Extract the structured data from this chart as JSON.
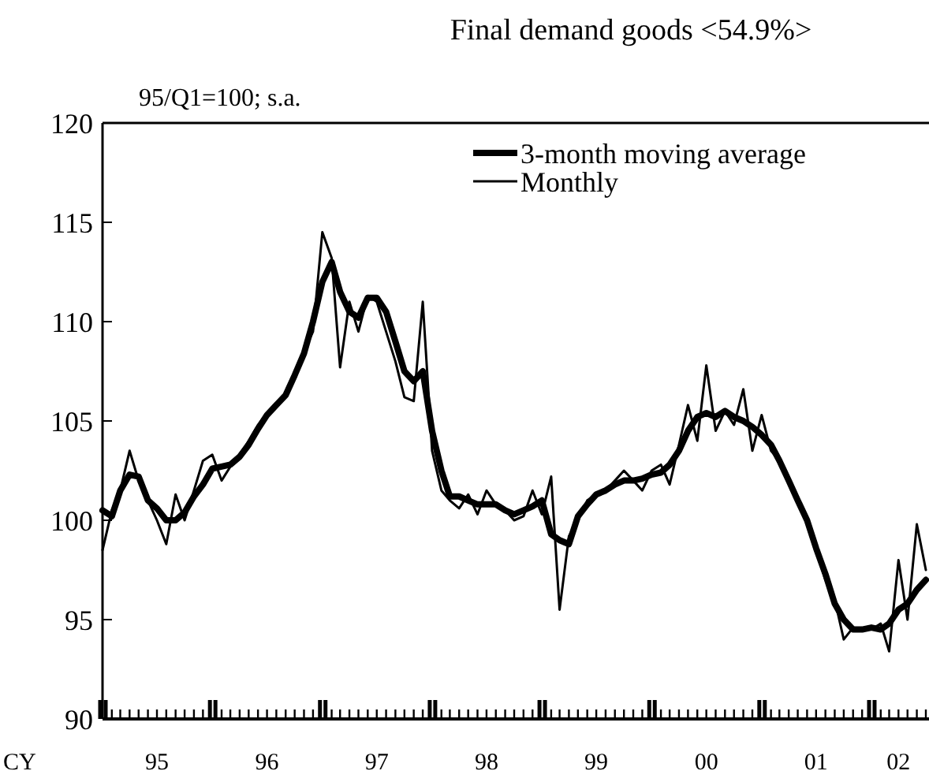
{
  "chart_data": {
    "type": "line",
    "title": "Final demand goods <54.9%>",
    "subtitle": "95/Q1=100; s.a.",
    "xlabel": "CY",
    "x": [
      "1995-01",
      "1995-02",
      "1995-03",
      "1995-04",
      "1995-05",
      "1995-06",
      "1995-07",
      "1995-08",
      "1995-09",
      "1995-10",
      "1995-11",
      "1995-12",
      "1996-01",
      "1996-02",
      "1996-03",
      "1996-04",
      "1996-05",
      "1996-06",
      "1996-07",
      "1996-08",
      "1996-09",
      "1996-10",
      "1996-11",
      "1996-12",
      "1997-01",
      "1997-02",
      "1997-03",
      "1997-04",
      "1997-05",
      "1997-06",
      "1997-07",
      "1997-08",
      "1997-09",
      "1997-10",
      "1997-11",
      "1997-12",
      "1998-01",
      "1998-02",
      "1998-03",
      "1998-04",
      "1998-05",
      "1998-06",
      "1998-07",
      "1998-08",
      "1998-09",
      "1998-10",
      "1998-11",
      "1998-12",
      "1999-01",
      "1999-02",
      "1999-03",
      "1999-04",
      "1999-05",
      "1999-06",
      "1999-07",
      "1999-08",
      "1999-09",
      "1999-10",
      "1999-11",
      "1999-12",
      "2000-01",
      "2000-02",
      "2000-03",
      "2000-04",
      "2000-05",
      "2000-06",
      "2000-07",
      "2000-08",
      "2000-09",
      "2000-10",
      "2000-11",
      "2000-12",
      "2001-01",
      "2001-02",
      "2001-03",
      "2001-04",
      "2001-05",
      "2001-06",
      "2001-07",
      "2001-08",
      "2001-09",
      "2001-10",
      "2001-11",
      "2001-12",
      "2002-01",
      "2002-02",
      "2002-03",
      "2002-04",
      "2002-05",
      "2002-06",
      "2002-07"
    ],
    "series": [
      {
        "name": "3-month moving average",
        "color": "#000000",
        "values": [
          100.5,
          100.2,
          101.5,
          102.3,
          102.2,
          101,
          100.6,
          100,
          100,
          100.4,
          101.2,
          101.8,
          102.6,
          102.7,
          102.8,
          103.2,
          103.8,
          104.6,
          105.3,
          105.8,
          106.3,
          107.3,
          108.4,
          110,
          112,
          113,
          111.5,
          110.5,
          110.2,
          111.2,
          111.2,
          110.5,
          109,
          107.5,
          107,
          107.5,
          104.5,
          102.5,
          101.2,
          101.2,
          101,
          100.8,
          100.8,
          100.8,
          100.5,
          100.3,
          100.5,
          100.7,
          101,
          99.3,
          99,
          98.8,
          100.2,
          100.8,
          101.3,
          101.5,
          101.8,
          102,
          102,
          102.1,
          102.3,
          102.4,
          102.8,
          103.5,
          104.5,
          105.2,
          105.4,
          105.2,
          105.5,
          105.2,
          105,
          104.7,
          104.3,
          103.8,
          103,
          102,
          101,
          100,
          98.6,
          97.3,
          95.8,
          95,
          94.5,
          94.5,
          94.6,
          94.5,
          94.8,
          95.5,
          95.8,
          96.5,
          97
        ]
      },
      {
        "name": "Monthly",
        "color": "#000000",
        "values": [
          98.5,
          100.5,
          101.5,
          103.5,
          102,
          101,
          100,
          98.8,
          101.3,
          100,
          101.5,
          103,
          103.3,
          102,
          102.7,
          103.3,
          104,
          104.8,
          105.4,
          105.8,
          106.2,
          107.2,
          108.5,
          109.5,
          114.5,
          113.2,
          107.7,
          111,
          109.5,
          111.3,
          111,
          109.5,
          108,
          106.2,
          106,
          111,
          103.5,
          101.5,
          101,
          100.6,
          101.3,
          100.3,
          101.5,
          100.8,
          100.5,
          100,
          100.2,
          101.5,
          100.3,
          102.2,
          95.5,
          99.2,
          100,
          101,
          101.3,
          101.5,
          102,
          102.5,
          102,
          101.5,
          102.5,
          102.8,
          101.8,
          103.8,
          105.8,
          104,
          107.8,
          104.5,
          105.5,
          104.8,
          106.6,
          103.5,
          105.3,
          103.5,
          103,
          102,
          101,
          100,
          98.5,
          97,
          96,
          94,
          94.6,
          94.5,
          94.5,
          94.8,
          93.4,
          98,
          95,
          99.8,
          97.5
        ]
      }
    ],
    "xlim": [
      "1995-01",
      "2002-07"
    ],
    "xticks": [
      {
        "value": "1995-07",
        "label": "95"
      },
      {
        "value": "1996-07",
        "label": "96"
      },
      {
        "value": "1997-07",
        "label": "97"
      },
      {
        "value": "1998-07",
        "label": "98"
      },
      {
        "value": "1999-07",
        "label": "99"
      },
      {
        "value": "2000-07",
        "label": "00"
      },
      {
        "value": "2001-07",
        "label": "01"
      },
      {
        "value": "2002-04",
        "label": "02"
      }
    ],
    "ylim": [
      90,
      120
    ],
    "yticks": [
      90,
      95,
      100,
      105,
      110,
      115,
      120
    ],
    "grid": false,
    "legend": "top right"
  }
}
